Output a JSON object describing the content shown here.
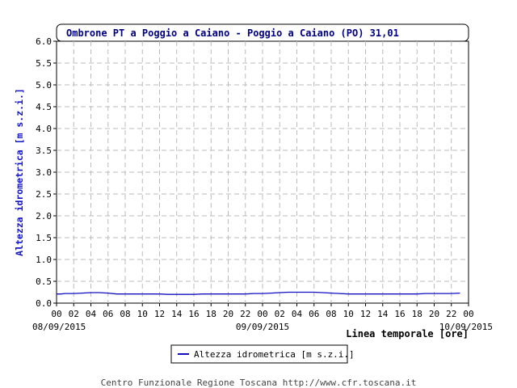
{
  "chart_data": {
    "type": "line",
    "title": "Ombrone PT a Poggio a Caiano - Poggio a Caiano (PO) 31,01",
    "ylabel": "Altezza idrometrica [m s.z.i.]",
    "xlabel": "Linea temporale [ore]",
    "ylim": [
      0,
      6.0
    ],
    "yticks": [
      "0.0",
      "0.5",
      "1.0",
      "1.5",
      "2.0",
      "2.5",
      "3.0",
      "3.5",
      "4.0",
      "4.5",
      "5.0",
      "5.5",
      "6.0"
    ],
    "xlim_hours": [
      0,
      48
    ],
    "xticks": [
      "00",
      "02",
      "04",
      "06",
      "08",
      "10",
      "12",
      "14",
      "16",
      "18",
      "20",
      "22",
      "00",
      "02",
      "04",
      "06",
      "08",
      "10",
      "12",
      "14",
      "16",
      "18",
      "20",
      "22",
      "00"
    ],
    "date_labels": [
      {
        "hour": 0,
        "text": "08/09/2015"
      },
      {
        "hour": 24,
        "text": "09/09/2015"
      },
      {
        "hour": 48,
        "text": "10/09/2015"
      }
    ],
    "grid": true,
    "legend_position": "bottom-center",
    "series": [
      {
        "name": "Altezza idrometrica [m s.z.i.]",
        "color": "#1010c0",
        "x": [
          0,
          0.5,
          1,
          2,
          3,
          4,
          5,
          6,
          7,
          8,
          9,
          10,
          11,
          12,
          13,
          14,
          15,
          16,
          17,
          18,
          19,
          20,
          21,
          22,
          23,
          24,
          25,
          26,
          27,
          28,
          29,
          30,
          31,
          32,
          33,
          34,
          35,
          36,
          37,
          38,
          39,
          40,
          41,
          42,
          43,
          44,
          45,
          46,
          47
        ],
        "y": [
          0.21,
          0.21,
          0.22,
          0.22,
          0.23,
          0.24,
          0.24,
          0.23,
          0.21,
          0.21,
          0.21,
          0.21,
          0.21,
          0.21,
          0.2,
          0.2,
          0.2,
          0.2,
          0.21,
          0.21,
          0.21,
          0.21,
          0.21,
          0.21,
          0.22,
          0.22,
          0.23,
          0.24,
          0.25,
          0.25,
          0.25,
          0.25,
          0.24,
          0.23,
          0.22,
          0.21,
          0.21,
          0.21,
          0.21,
          0.21,
          0.21,
          0.21,
          0.21,
          0.21,
          0.22,
          0.22,
          0.22,
          0.22,
          0.23
        ]
      }
    ]
  },
  "legend": {
    "label": "Altezza idrometrica [m s.z.i.]",
    "color": "#1010c0"
  },
  "footer": {
    "credit": "Centro Funzionale Regione Toscana http://www.cfr.toscana.it"
  },
  "colors": {
    "title_text": "#000080",
    "axis_label": "#1414c8",
    "grid": "#bbbbbb",
    "line": "#1010c0"
  }
}
